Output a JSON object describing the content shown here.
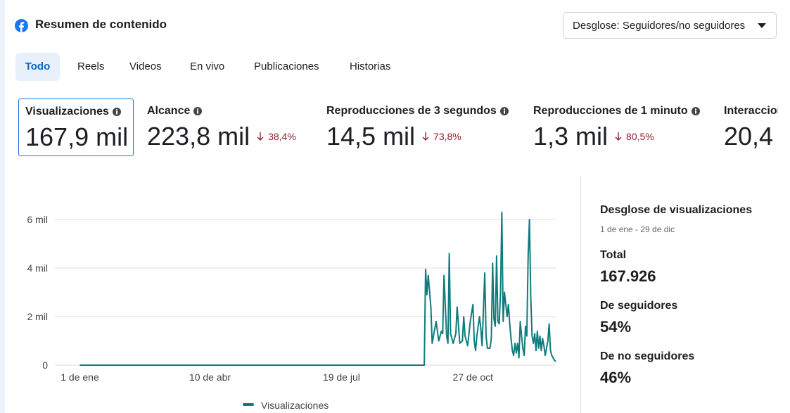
{
  "header": {
    "title": "Resumen de contenido",
    "dropdown": "Desglose: Seguidores/no seguidores"
  },
  "tabs": [
    "Todo",
    "Reels",
    "Videos",
    "En vivo",
    "Publicaciones",
    "Historias"
  ],
  "metrics": [
    {
      "label": "Visualizaciones",
      "value": "167,9 mil"
    },
    {
      "label": "Alcance",
      "value": "223,8 mil",
      "change": "38,4%"
    },
    {
      "label": "Reproducciones de 3 segundos",
      "value": "14,5 mil",
      "change": "73,8%"
    },
    {
      "label": "Reproducciones de 1 minuto",
      "value": "1,3 mil",
      "change": "80,5%"
    },
    {
      "label": "Interacciones",
      "value": "20,4"
    }
  ],
  "chart_data": {
    "type": "line",
    "x": [
      0,
      262,
      263,
      264,
      265,
      267,
      268,
      270,
      271,
      273,
      275,
      276,
      277,
      279,
      280,
      281,
      282,
      284,
      286,
      287,
      289,
      291,
      292,
      293,
      295,
      297,
      299,
      300,
      301,
      302,
      304,
      305,
      306,
      308,
      309,
      310,
      312,
      313,
      314,
      315,
      316,
      317,
      318,
      319,
      320,
      321,
      322,
      323,
      324,
      325,
      326,
      327,
      328,
      329,
      330,
      331,
      332,
      333,
      334,
      335,
      336,
      337,
      338,
      339,
      340,
      341,
      342,
      343,
      344,
      345,
      346,
      347,
      348,
      349,
      350,
      351,
      352,
      353,
      354,
      356,
      357,
      358,
      359,
      360,
      361,
      362
    ],
    "series": [
      {
        "name": "Visualizaciones",
        "color": "#0f7b7b",
        "values": [
          0,
          0,
          3950,
          2900,
          3700,
          2400,
          900,
          1500,
          1800,
          1000,
          1400,
          1300,
          3700,
          1200,
          900,
          4600,
          1300,
          900,
          1300,
          2400,
          900,
          1000,
          2000,
          1200,
          800,
          1800,
          2500,
          1000,
          600,
          1200,
          2000,
          1500,
          800,
          3800,
          1200,
          700,
          700,
          1100,
          4200,
          1900,
          1600,
          4500,
          1800,
          1700,
          3000,
          6300,
          1800,
          3000,
          2500,
          2000,
          2500,
          1700,
          1100,
          600,
          400,
          900,
          500,
          900,
          300,
          1800,
          1200,
          700,
          400,
          1600,
          1200,
          4500,
          6000,
          2800,
          1200,
          900,
          1300,
          600,
          1400,
          700,
          1200,
          600,
          1100,
          800,
          400,
          1000,
          1700,
          600,
          400,
          300,
          200,
          150
        ]
      }
    ],
    "xlim": [
      -19,
      362
    ],
    "xticks": [
      {
        "value": 0,
        "label": "1 de ene"
      },
      {
        "value": 99,
        "label": "10 de abr"
      },
      {
        "value": 199,
        "label": "19 de jul"
      },
      {
        "value": 299,
        "label": "27 de oct"
      }
    ],
    "ylim": [
      0,
      6600
    ],
    "yticks": [
      0,
      {
        "value": 2000,
        "label": "2 mil"
      },
      {
        "value": 4000,
        "label": "4 mil"
      },
      {
        "value": 6000,
        "label": "6 mil"
      }
    ],
    "grid": true
  },
  "breakdown": {
    "title": "Desglose de visualizaciones",
    "date_range": "1 de ene - 29 de dic",
    "items": [
      {
        "label": "Total",
        "value": "167.926"
      },
      {
        "label": "De seguidores",
        "value": "54%"
      },
      {
        "label": "De no seguidores",
        "value": "46%"
      }
    ]
  }
}
